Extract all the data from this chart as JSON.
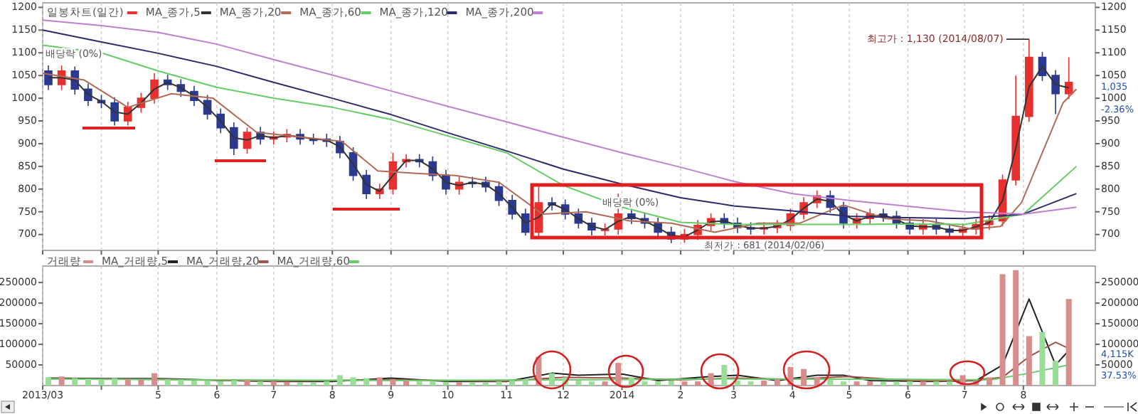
{
  "chart_data": [
    {
      "type": "candlestick",
      "legend": "top left",
      "grid": "x",
      "tick_labels": "y",
      "x": [
        "2013-03-04",
        "2013-03-11",
        "2013-03-18",
        "2013-03-25",
        "2013-04-01",
        "2013-04-08",
        "2013-04-15",
        "2013-04-22",
        "2013-04-29",
        "2013-05-06",
        "2013-05-13",
        "2013-05-20",
        "2013-05-27",
        "2013-06-03",
        "2013-06-10",
        "2013-06-17",
        "2013-06-24",
        "2013-07-01",
        "2013-07-08",
        "2013-07-15",
        "2013-07-22",
        "2013-07-29",
        "2013-08-05",
        "2013-08-12",
        "2013-08-19",
        "2013-08-26",
        "2013-09-02",
        "2013-09-09",
        "2013-09-16",
        "2013-09-23",
        "2013-09-30",
        "2013-10-07",
        "2013-10-14",
        "2013-10-21",
        "2013-10-28",
        "2013-11-04",
        "2013-11-11",
        "2013-11-18",
        "2013-11-25",
        "2013-12-02",
        "2013-12-09",
        "2013-12-16",
        "2013-12-23",
        "2013-12-30",
        "2014-01-06",
        "2014-01-13",
        "2014-01-20",
        "2014-01-27",
        "2014-02-03",
        "2014-02-10",
        "2014-02-17",
        "2014-02-24",
        "2014-03-03",
        "2014-03-10",
        "2014-03-17",
        "2014-03-24",
        "2014-03-31",
        "2014-04-07",
        "2014-04-14",
        "2014-04-21",
        "2014-04-28",
        "2014-05-05",
        "2014-05-12",
        "2014-05-19",
        "2014-05-26",
        "2014-06-02",
        "2014-06-09",
        "2014-06-16",
        "2014-06-23",
        "2014-06-30",
        "2014-07-07",
        "2014-07-14",
        "2014-07-21",
        "2014-07-28",
        "2014-08-04",
        "2014-08-11",
        "2014-08-18",
        "2014-08-25"
      ],
      "xlim": [
        "2013-03-01",
        "2014-09-08"
      ],
      "xticks": [
        {
          "value": "2013-03-01",
          "label": null
        },
        {
          "value": "2013-04-01",
          "label": null
        },
        {
          "value": "2013-05-01",
          "label": null
        },
        {
          "value": "2013-06-01",
          "label": null
        },
        {
          "value": "2013-07-01",
          "label": null
        },
        {
          "value": "2013-08-01",
          "label": null
        },
        {
          "value": "2013-09-01",
          "label": null
        },
        {
          "value": "2013-10-01",
          "label": null
        },
        {
          "value": "2013-11-01",
          "label": null
        },
        {
          "value": "2013-12-01",
          "label": null
        },
        {
          "value": "2014-01-01",
          "label": null
        },
        {
          "value": "2014-02-01",
          "label": null
        },
        {
          "value": "2014-03-01",
          "label": null
        },
        {
          "value": "2014-04-01",
          "label": null
        },
        {
          "value": "2014-05-01",
          "label": null
        },
        {
          "value": "2014-06-01",
          "label": null
        },
        {
          "value": "2014-07-01",
          "label": null
        },
        {
          "value": "2014-08-01",
          "label": null
        }
      ],
      "ylim": [
        665,
        1210
      ],
      "yticks": [
        700,
        750,
        800,
        850,
        900,
        950,
        1000,
        1050,
        1100,
        1150,
        1200
      ],
      "y2lim": [
        665,
        1210
      ],
      "y2ticks": [
        700,
        750,
        800,
        850,
        900,
        950,
        1000,
        1050,
        1100,
        1150,
        1200
      ],
      "series": [
        {
          "name": "일봉차트(일간)",
          "color": "#e8312f",
          "ohlc": [
            [
              1060,
              1072,
              1018,
              1030
            ],
            [
              1030,
              1072,
              1018,
              1060
            ],
            [
              1060,
              1070,
              1008,
              1020
            ],
            [
              1020,
              1032,
              983,
              995
            ],
            [
              995,
              1007,
              978,
              990
            ],
            [
              990,
              1002,
              940,
              950
            ],
            [
              950,
              992,
              940,
              980
            ],
            [
              980,
              1012,
              968,
              1000
            ],
            [
              1000,
              1055,
              988,
              1040
            ],
            [
              1040,
              1052,
              1018,
              1030
            ],
            [
              1030,
              1042,
              1003,
              1015
            ],
            [
              1015,
              1027,
              983,
              995
            ],
            [
              995,
              1007,
              953,
              965
            ],
            [
              965,
              977,
              923,
              935
            ],
            [
              935,
              947,
              875,
              890
            ],
            [
              890,
              935,
              878,
              925
            ],
            [
              925,
              937,
              898,
              910
            ],
            [
              910,
              927,
              898,
              915
            ],
            [
              915,
              932,
              903,
              920
            ],
            [
              920,
              932,
              898,
              910
            ],
            [
              910,
              922,
              898,
              910
            ],
            [
              910,
              922,
              893,
              905
            ],
            [
              905,
              917,
              868,
              880
            ],
            [
              880,
              892,
              818,
              830
            ],
            [
              830,
              842,
              778,
              790
            ],
            [
              790,
              812,
              778,
              800
            ],
            [
              800,
              880,
              788,
              860
            ],
            [
              860,
              877,
              848,
              865
            ],
            [
              865,
              877,
              848,
              860
            ],
            [
              860,
              872,
              818,
              830
            ],
            [
              830,
              842,
              788,
              800
            ],
            [
              800,
              827,
              788,
              815
            ],
            [
              815,
              827,
              803,
              815
            ],
            [
              815,
              827,
              793,
              805
            ],
            [
              805,
              817,
              763,
              775
            ],
            [
              775,
              787,
              733,
              745
            ],
            [
              745,
              757,
              698,
              705
            ],
            [
              705,
              805,
              693,
              770
            ],
            [
              770,
              782,
              753,
              765
            ],
            [
              765,
              777,
              733,
              745
            ],
            [
              745,
              757,
              713,
              725
            ],
            [
              725,
              737,
              698,
              710
            ],
            [
              710,
              724,
              698,
              712
            ],
            [
              712,
              790,
              700,
              745
            ],
            [
              745,
              757,
              723,
              735
            ],
            [
              735,
              747,
              713,
              725
            ],
            [
              725,
              737,
              693,
              705
            ],
            [
              705,
              717,
              681,
              690
            ],
            [
              690,
              712,
              682,
              700
            ],
            [
              700,
              732,
              688,
              720
            ],
            [
              720,
              747,
              708,
              735
            ],
            [
              735,
              747,
              713,
              725
            ],
            [
              725,
              737,
              703,
              715
            ],
            [
              715,
              727,
              700,
              712
            ],
            [
              712,
              727,
              700,
              715
            ],
            [
              715,
              732,
              703,
              720
            ],
            [
              720,
              757,
              708,
              745
            ],
            [
              745,
              782,
              733,
              770
            ],
            [
              770,
              797,
              758,
              785
            ],
            [
              785,
              797,
              748,
              760
            ],
            [
              760,
              772,
              713,
              725
            ],
            [
              725,
              747,
              713,
              735
            ],
            [
              735,
              757,
              723,
              745
            ],
            [
              745,
              757,
              728,
              740
            ],
            [
              740,
              752,
              713,
              725
            ],
            [
              725,
              737,
              700,
              712
            ],
            [
              712,
              734,
              700,
              722
            ],
            [
              722,
              734,
              700,
              712
            ],
            [
              712,
              724,
              693,
              705
            ],
            [
              705,
              724,
              693,
              712
            ],
            [
              712,
              734,
              700,
              722
            ],
            [
              722,
              742,
              710,
              730
            ],
            [
              730,
              832,
              718,
              820
            ],
            [
              820,
              1050,
              808,
              960
            ],
            [
              960,
              1130,
              948,
              1090
            ],
            [
              1090,
              1102,
              1038,
              1050
            ],
            [
              1050,
              1062,
              965,
              1010
            ],
            [
              1010,
              1090,
              998,
              1035
            ]
          ],
          "colors": [
            "#2b3990",
            "#e8312f",
            "#2b3990",
            "#2b3990",
            "#2b3990",
            "#2b3990",
            "#e8312f",
            "#e8312f",
            "#e8312f",
            "#2b3990",
            "#2b3990",
            "#2b3990",
            "#2b3990",
            "#2b3990",
            "#2b3990",
            "#e8312f",
            "#2b3990",
            "#e8312f",
            "#e8312f",
            "#2b3990",
            "#2b3990",
            "#2b3990",
            "#2b3990",
            "#2b3990",
            "#2b3990",
            "#e8312f",
            "#e8312f",
            "#e8312f",
            "#2b3990",
            "#2b3990",
            "#2b3990",
            "#e8312f",
            "#2b3990",
            "#2b3990",
            "#2b3990",
            "#2b3990",
            "#2b3990",
            "#e8312f",
            "#2b3990",
            "#2b3990",
            "#2b3990",
            "#2b3990",
            "#e8312f",
            "#e8312f",
            "#2b3990",
            "#2b3990",
            "#2b3990",
            "#2b3990",
            "#e8312f",
            "#e8312f",
            "#e8312f",
            "#2b3990",
            "#2b3990",
            "#2b3990",
            "#e8312f",
            "#e8312f",
            "#e8312f",
            "#e8312f",
            "#e8312f",
            "#2b3990",
            "#2b3990",
            "#e8312f",
            "#e8312f",
            "#2b3990",
            "#2b3990",
            "#2b3990",
            "#e8312f",
            "#2b3990",
            "#2b3990",
            "#e8312f",
            "#e8312f",
            "#e8312f",
            "#e8312f",
            "#e8312f",
            "#e8312f",
            "#2b3990",
            "#2b3990",
            "#e8312f"
          ]
        },
        {
          "name": "MA_종가,5",
          "type": "line",
          "color": "#333333",
          "values": [
            1045,
            1045,
            1040,
            1008,
            993,
            970,
            965,
            990,
            1020,
            1035,
            1023,
            1005,
            980,
            950,
            913,
            908,
            918,
            913,
            918,
            915,
            910,
            908,
            893,
            855,
            810,
            795,
            830,
            863,
            863,
            845,
            815,
            808,
            815,
            810,
            790,
            760,
            725,
            738,
            768,
            755,
            735,
            718,
            711,
            729,
            740,
            730,
            715,
            698,
            695,
            710,
            728,
            730,
            720,
            714,
            714,
            718,
            733,
            758,
            778,
            773,
            743,
            730,
            740,
            743,
            733,
            719,
            717,
            717,
            709,
            709,
            717,
            726,
            775,
            890,
            1025,
            1070,
            1030,
            1023
          ]
        },
        {
          "name": "MA_종가,20",
          "type": "line",
          "color": "#b06a55",
          "x": [
            "2013-03-01",
            "2013-03-23",
            "2013-04-15",
            "2013-05-08",
            "2013-05-30",
            "2013-06-22",
            "2013-07-14",
            "2013-08-06",
            "2013-08-25",
            "2013-09-13",
            "2013-10-05",
            "2013-10-28",
            "2013-11-20",
            "2013-12-13",
            "2014-01-05",
            "2014-01-27",
            "2014-02-19",
            "2014-03-14",
            "2014-04-05",
            "2014-04-28",
            "2014-05-20",
            "2014-06-12",
            "2014-07-05",
            "2014-07-20",
            "2014-07-31",
            "2014-08-11",
            "2014-08-22",
            "2014-08-29"
          ],
          "values": [
            1055,
            1040,
            980,
            1010,
            1000,
            925,
            915,
            905,
            840,
            835,
            830,
            815,
            745,
            750,
            730,
            725,
            705,
            725,
            725,
            765,
            735,
            730,
            712,
            718,
            770,
            880,
            990,
            1020
          ]
        },
        {
          "name": "MA_종가,60",
          "type": "line",
          "color": "#66cc66",
          "x": [
            "2013-03-01",
            "2013-04-01",
            "2013-05-01",
            "2013-06-01",
            "2013-07-01",
            "2013-08-01",
            "2013-09-01",
            "2013-10-01",
            "2013-11-01",
            "2013-12-01",
            "2014-01-01",
            "2014-02-01",
            "2014-03-01",
            "2014-04-01",
            "2014-05-01",
            "2014-06-01",
            "2014-07-01",
            "2014-08-01",
            "2014-08-29"
          ],
          "values": [
            1117,
            1100,
            1060,
            1024,
            1000,
            980,
            953,
            917,
            880,
            808,
            760,
            727,
            722,
            722,
            722,
            723,
            722,
            745,
            850
          ]
        },
        {
          "name": "MA_종가,120",
          "type": "line",
          "color": "#2b2b6b",
          "x": [
            "2013-03-01",
            "2013-04-01",
            "2013-05-01",
            "2013-06-01",
            "2013-07-01",
            "2013-08-01",
            "2013-09-01",
            "2013-10-01",
            "2013-11-01",
            "2013-12-01",
            "2014-01-01",
            "2014-02-01",
            "2014-03-01",
            "2014-04-01",
            "2014-05-01",
            "2014-06-01",
            "2014-07-01",
            "2014-08-01",
            "2014-08-29"
          ],
          "values": [
            1150,
            1124,
            1099,
            1070,
            1035,
            1000,
            964,
            924,
            884,
            844,
            811,
            781,
            763,
            752,
            740,
            737,
            735,
            745,
            790
          ]
        },
        {
          "name": "MA_종가,200",
          "type": "line",
          "color": "#c080d0",
          "x": [
            "2013-03-01",
            "2013-04-01",
            "2013-05-01",
            "2013-06-01",
            "2013-07-01",
            "2013-08-01",
            "2013-09-01",
            "2013-10-01",
            "2013-11-01",
            "2013-12-01",
            "2014-01-01",
            "2014-02-01",
            "2014-03-01",
            "2014-04-01",
            "2014-05-01",
            "2014-06-01",
            "2014-07-01",
            "2014-08-01",
            "2014-08-29"
          ],
          "values": [
            1172,
            1160,
            1145,
            1119,
            1085,
            1051,
            1016,
            982,
            948,
            914,
            880,
            848,
            817,
            790,
            775,
            762,
            750,
            745,
            760
          ]
        }
      ],
      "annotations": [
        {
          "text": "배당락 (0%)",
          "x": "2013-03-04",
          "y": 1075
        },
        {
          "text": "배당락 (0%)",
          "x": "2013-12-23",
          "y": 748
        },
        {
          "text": "최고가 : 1,130 (2014/08/07)",
          "x": "2014-08-04",
          "y": 1130
        },
        {
          "text": "최저가 : 681 (2014/02/06)",
          "x": "2014-02-03",
          "y": 681
        },
        "1,035",
        "-2.36%"
      ]
    },
    {
      "type": "bar",
      "legend": "top left",
      "grid": "x",
      "x": [
        "2013-03-04",
        "2013-03-11",
        "2013-03-18",
        "2013-03-25",
        "2013-04-01",
        "2013-04-08",
        "2013-04-15",
        "2013-04-22",
        "2013-04-29",
        "2013-05-06",
        "2013-05-13",
        "2013-05-20",
        "2013-05-27",
        "2013-06-03",
        "2013-06-10",
        "2013-06-17",
        "2013-06-24",
        "2013-07-01",
        "2013-07-08",
        "2013-07-15",
        "2013-07-22",
        "2013-07-29",
        "2013-08-05",
        "2013-08-12",
        "2013-08-19",
        "2013-08-26",
        "2013-09-02",
        "2013-09-09",
        "2013-09-16",
        "2013-09-23",
        "2013-09-30",
        "2013-10-07",
        "2013-10-14",
        "2013-10-21",
        "2013-10-28",
        "2013-11-04",
        "2013-11-11",
        "2013-11-18",
        "2013-11-25",
        "2013-12-02",
        "2013-12-09",
        "2013-12-16",
        "2013-12-23",
        "2013-12-30",
        "2014-01-06",
        "2014-01-13",
        "2014-01-20",
        "2014-01-27",
        "2014-02-03",
        "2014-02-10",
        "2014-02-17",
        "2014-02-24",
        "2014-03-03",
        "2014-03-10",
        "2014-03-17",
        "2014-03-24",
        "2014-03-31",
        "2014-04-07",
        "2014-04-14",
        "2014-04-21",
        "2014-04-28",
        "2014-05-05",
        "2014-05-12",
        "2014-05-19",
        "2014-05-26",
        "2014-06-02",
        "2014-06-09",
        "2014-06-16",
        "2014-06-23",
        "2014-06-30",
        "2014-07-07",
        "2014-07-14",
        "2014-07-21",
        "2014-07-28",
        "2014-08-04",
        "2014-08-11",
        "2014-08-18",
        "2014-08-25"
      ],
      "xlim": [
        "2013-03-01",
        "2014-09-08"
      ],
      "xticks": [
        {
          "value": "2013-03-01",
          "label": "2013/03"
        },
        {
          "value": "2013-04-01",
          "label": null
        },
        {
          "value": "2013-05-01",
          "label": "5"
        },
        {
          "value": "2013-06-01",
          "label": "6"
        },
        {
          "value": "2013-07-01",
          "label": "7"
        },
        {
          "value": "2013-08-01",
          "label": "8"
        },
        {
          "value": "2013-09-01",
          "label": "9"
        },
        {
          "value": "2013-10-01",
          "label": "10"
        },
        {
          "value": "2013-11-01",
          "label": "11"
        },
        {
          "value": "2013-12-01",
          "label": "12"
        },
        {
          "value": "2014-01-01",
          "label": "2014"
        },
        {
          "value": "2014-02-01",
          "label": "2"
        },
        {
          "value": "2014-03-01",
          "label": "3"
        },
        {
          "value": "2014-04-01",
          "label": "4"
        },
        {
          "value": "2014-05-01",
          "label": "5"
        },
        {
          "value": "2014-06-01",
          "label": "6"
        },
        {
          "value": "2014-07-01",
          "label": "7"
        },
        {
          "value": "2014-08-01",
          "label": "8"
        }
      ],
      "ylim": [
        0,
        290000
      ],
      "yticks": [
        50000,
        100000,
        150000,
        200000,
        250000
      ],
      "y2lim": [
        0,
        290000
      ],
      "y2ticks": [
        50000,
        100000,
        150000,
        200000,
        250000
      ],
      "series": [
        {
          "name": "거래량",
          "color": "#d98c8c",
          "values": [
            20000,
            22000,
            18000,
            16000,
            15000,
            18000,
            15000,
            14000,
            30000,
            15000,
            14000,
            12000,
            12000,
            10000,
            12000,
            13000,
            10000,
            10000,
            9000,
            8000,
            8000,
            10000,
            25000,
            20000,
            18000,
            20000,
            15000,
            12000,
            10000,
            10000,
            9000,
            8000,
            8000,
            8000,
            10000,
            12000,
            15000,
            70000,
            30000,
            20000,
            12000,
            10000,
            10000,
            55000,
            20000,
            10000,
            10000,
            12000,
            10000,
            10000,
            30000,
            50000,
            12000,
            10000,
            12000,
            15000,
            45000,
            40000,
            20000,
            15000,
            10000,
            10000,
            10000,
            10000,
            10000,
            10000,
            10000,
            10000,
            10000,
            25000,
            12000,
            20000,
            270000,
            280000,
            120000,
            130000,
            60000,
            210000
          ],
          "colors": [
            "#99dd99",
            "#d98c8c",
            "#99dd99",
            "#99dd99",
            "#99dd99",
            "#99dd99",
            "#d98c8c",
            "#d98c8c",
            "#d98c8c",
            "#99dd99",
            "#99dd99",
            "#99dd99",
            "#99dd99",
            "#99dd99",
            "#99dd99",
            "#d98c8c",
            "#99dd99",
            "#d98c8c",
            "#d98c8c",
            "#99dd99",
            "#99dd99",
            "#99dd99",
            "#99dd99",
            "#99dd99",
            "#99dd99",
            "#d98c8c",
            "#d98c8c",
            "#d98c8c",
            "#99dd99",
            "#99dd99",
            "#99dd99",
            "#d98c8c",
            "#99dd99",
            "#99dd99",
            "#99dd99",
            "#99dd99",
            "#99dd99",
            "#d98c8c",
            "#99dd99",
            "#99dd99",
            "#99dd99",
            "#99dd99",
            "#d98c8c",
            "#d98c8c",
            "#99dd99",
            "#99dd99",
            "#99dd99",
            "#99dd99",
            "#d98c8c",
            "#d98c8c",
            "#d98c8c",
            "#99dd99",
            "#99dd99",
            "#99dd99",
            "#d98c8c",
            "#d98c8c",
            "#d98c8c",
            "#d98c8c",
            "#d98c8c",
            "#99dd99",
            "#99dd99",
            "#d98c8c",
            "#d98c8c",
            "#99dd99",
            "#99dd99",
            "#99dd99",
            "#d98c8c",
            "#99dd99",
            "#99dd99",
            "#d98c8c",
            "#d98c8c",
            "#d98c8c",
            "#d98c8c",
            "#d98c8c",
            "#d98c8c",
            "#99dd99",
            "#99dd99",
            "#d98c8c"
          ]
        },
        {
          "name": "MA_거래량,5",
          "type": "line",
          "color": "#222222",
          "x": [
            "2013-03-04",
            "2013-04-01",
            "2013-05-01",
            "2013-06-01",
            "2013-07-01",
            "2013-08-01",
            "2013-09-01",
            "2013-10-01",
            "2013-11-01",
            "2013-11-25",
            "2013-12-09",
            "2014-01-01",
            "2014-01-20",
            "2014-02-17",
            "2014-03-03",
            "2014-03-24",
            "2014-04-14",
            "2014-04-28",
            "2014-05-12",
            "2014-06-16",
            "2014-07-07",
            "2014-07-21",
            "2014-08-04",
            "2014-08-11",
            "2014-08-18",
            "2014-08-25"
          ],
          "values": [
            18000,
            17000,
            17000,
            13000,
            10000,
            10000,
            18000,
            10000,
            10000,
            30000,
            25000,
            28000,
            12000,
            22000,
            25000,
            12000,
            25000,
            25000,
            12000,
            10000,
            12000,
            50000,
            210000,
            130000,
            50000,
            85000
          ]
        },
        {
          "name": "MA_거래량,20",
          "type": "line",
          "color": "#a0524d",
          "x": [
            "2013-03-04",
            "2013-05-01",
            "2013-07-01",
            "2013-09-01",
            "2013-11-01",
            "2013-12-01",
            "2014-01-01",
            "2014-02-01",
            "2014-03-01",
            "2014-04-01",
            "2014-05-01",
            "2014-06-01",
            "2014-07-01",
            "2014-07-21",
            "2014-08-04",
            "2014-08-18",
            "2014-08-25"
          ],
          "values": [
            17000,
            15000,
            11000,
            14000,
            11000,
            20000,
            18000,
            14000,
            18000,
            15000,
            22000,
            12000,
            11000,
            20000,
            70000,
            105000,
            90000
          ]
        },
        {
          "name": "MA_거래량,60",
          "type": "line",
          "color": "#66cc66",
          "x": [
            "2013-03-04",
            "2013-06-01",
            "2013-09-01",
            "2013-12-01",
            "2014-03-01",
            "2014-06-01",
            "2014-07-15",
            "2014-08-04",
            "2014-08-25"
          ],
          "values": [
            16000,
            14000,
            12000,
            14000,
            16000,
            15000,
            14000,
            30000,
            50000
          ]
        }
      ],
      "annotations": [
        "4,115K",
        "37.53%"
      ]
    }
  ]
}
